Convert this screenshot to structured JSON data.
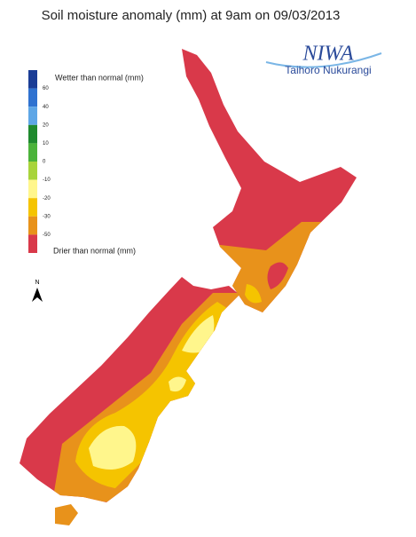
{
  "title": "Soil moisture anomaly (mm) at 9am on 09/03/2013",
  "logo": {
    "name": "NIWA",
    "subtitle": "Taihoro Nukurangi"
  },
  "legend": {
    "top_label": "Wetter than normal (mm)",
    "bottom_label": "Drier than normal (mm)",
    "colors": [
      "#1b3d96",
      "#2f72d0",
      "#5ea6e6",
      "#1f8a2e",
      "#4bb33a",
      "#a8d43b",
      "#fff68c",
      "#f5c400",
      "#e8921b",
      "#d9394a"
    ],
    "ticks": [
      60,
      40,
      20,
      10,
      0,
      -10,
      -20,
      -30,
      -50
    ]
  },
  "north_arrow": "N"
}
